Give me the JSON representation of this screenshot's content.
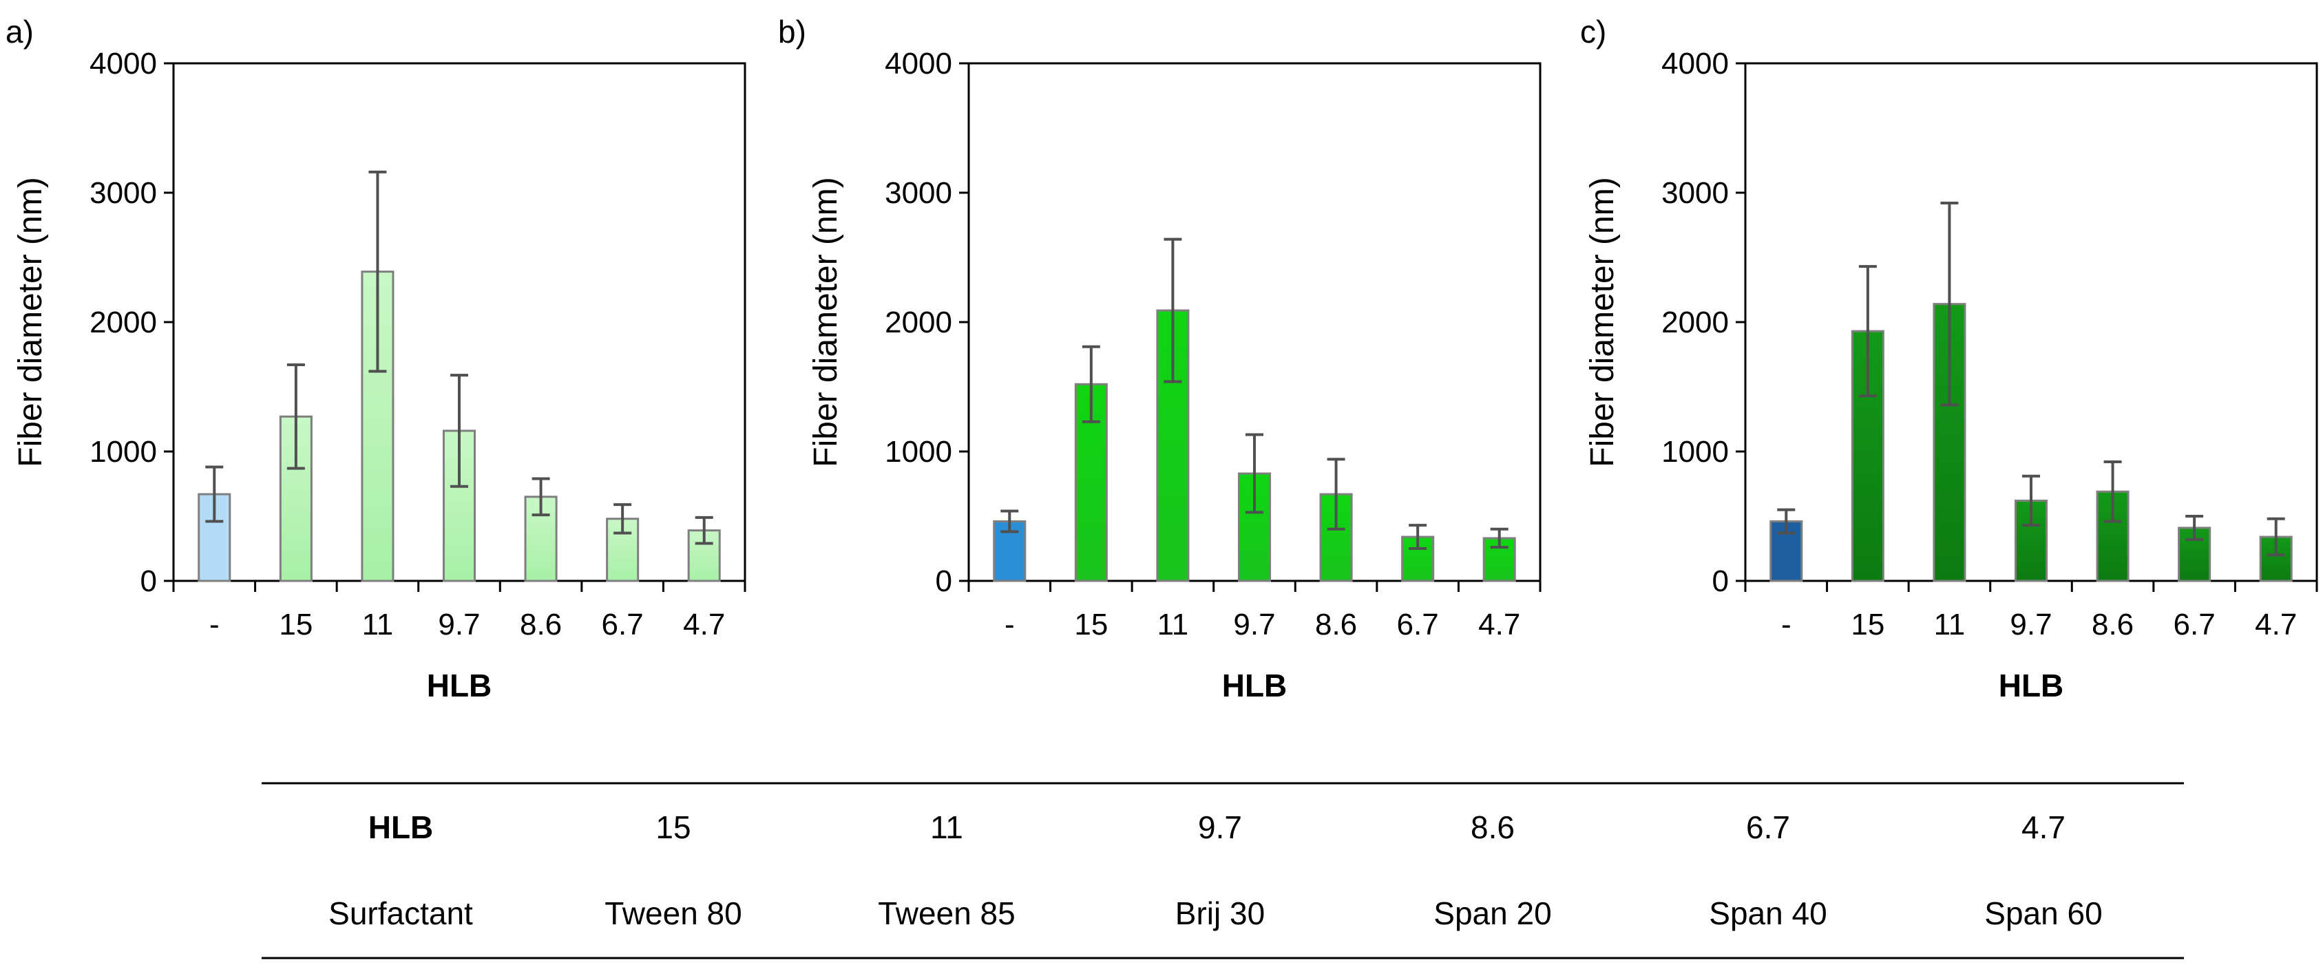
{
  "chart_data": [
    {
      "type": "bar",
      "panel": "a)",
      "categories": [
        "-",
        "15",
        "11",
        "9.7",
        "8.6",
        "6.7",
        "4.7"
      ],
      "values": [
        670,
        1270,
        2390,
        1160,
        650,
        480,
        390
      ],
      "errors": [
        210,
        400,
        770,
        430,
        140,
        110,
        100
      ],
      "xlabel": "HLB",
      "ylabel": "Fiber diameter (nm)",
      "ylim": [
        0,
        4000
      ],
      "yticks": [
        0,
        1000,
        2000,
        3000,
        4000
      ],
      "colors": {
        "control": "#b4dcf6",
        "bar": "#a7f0a6",
        "bar_top": "#c9f7c7"
      }
    },
    {
      "type": "bar",
      "panel": "b)",
      "categories": [
        "-",
        "15",
        "11",
        "9.7",
        "8.6",
        "6.7",
        "4.7"
      ],
      "values": [
        460,
        1520,
        2090,
        830,
        670,
        340,
        330
      ],
      "errors": [
        80,
        290,
        550,
        300,
        270,
        90,
        70
      ],
      "xlabel": "HLB",
      "ylabel": "Fiber diameter (nm)",
      "ylim": [
        0,
        4000
      ],
      "yticks": [
        0,
        1000,
        2000,
        3000,
        4000
      ],
      "colors": {
        "control": "#2b8fd6",
        "bar": "#19c41c",
        "bar_top": "#0fd512"
      }
    },
    {
      "type": "bar",
      "panel": "c)",
      "categories": [
        "-",
        "15",
        "11",
        "9.7",
        "8.6",
        "6.7",
        "4.7"
      ],
      "values": [
        460,
        1930,
        2140,
        620,
        690,
        410,
        340
      ],
      "errors": [
        90,
        500,
        780,
        190,
        230,
        90,
        140
      ],
      "xlabel": "HLB",
      "ylabel": "Fiber diameter (nm)",
      "ylim": [
        0,
        4000
      ],
      "yticks": [
        0,
        1000,
        2000,
        3000,
        4000
      ],
      "colors": {
        "control": "#1d5fa0",
        "bar": "#0d7a12",
        "bar_top": "#139a18"
      }
    }
  ],
  "table": {
    "header": {
      "label": "HLB",
      "values": [
        "15",
        "11",
        "9.7",
        "8.6",
        "6.7",
        "4.7"
      ]
    },
    "row": {
      "label": "Surfactant",
      "values": [
        "Tween 80",
        "Tween 85",
        "Brij 30",
        "Span 20",
        "Span 40",
        "Span 60"
      ]
    }
  },
  "colors": {
    "error_bar": "#505050",
    "bar_border": "#7f7f7f",
    "axis": "#000000",
    "rule": "#000000"
  }
}
